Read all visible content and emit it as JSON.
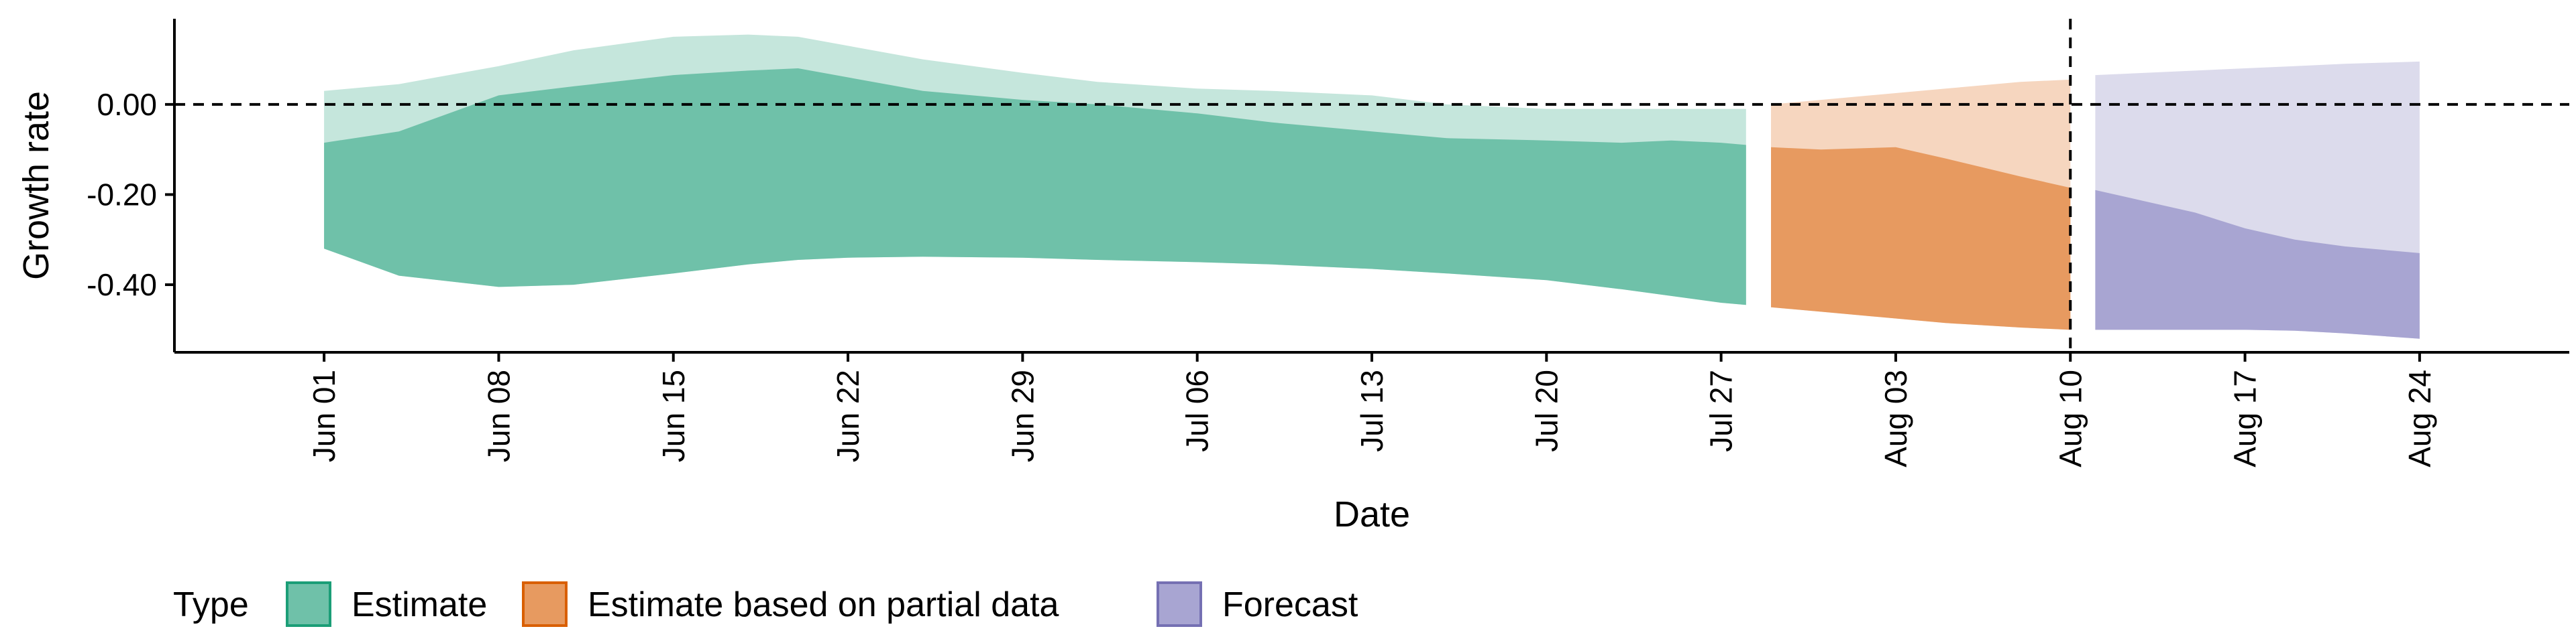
{
  "chart_data": {
    "type": "area",
    "xlabel": "Date",
    "ylabel": "Growth rate",
    "xlim": [
      "2020-05-26",
      "2020-08-30"
    ],
    "ylim": [
      -0.55,
      0.19
    ],
    "y_ticks": [
      0.0,
      -0.2,
      -0.4
    ],
    "y_tick_labels": [
      "0.00",
      "-0.20",
      "-0.40"
    ],
    "x_ticks": [
      "2020-06-01",
      "2020-06-08",
      "2020-06-15",
      "2020-06-22",
      "2020-06-29",
      "2020-07-06",
      "2020-07-13",
      "2020-07-20",
      "2020-07-27",
      "2020-08-03",
      "2020-08-10",
      "2020-08-17",
      "2020-08-24"
    ],
    "x_tick_labels": [
      "Jun 01",
      "Jun 08",
      "Jun 15",
      "Jun 22",
      "Jun 29",
      "Jul 06",
      "Jul 13",
      "Jul 20",
      "Jul 27",
      "Aug 03",
      "Aug 10",
      "Aug 17",
      "Aug 24"
    ],
    "reference_lines": {
      "horizontal_y": 0.0,
      "vertical_x": "2020-08-10",
      "style": "dashed"
    },
    "grid": false,
    "legend": {
      "title": "Type",
      "position": "bottom-left",
      "entries": [
        {
          "label": "Estimate",
          "fill": "#6fc1a9",
          "stroke": "#1b9e77"
        },
        {
          "label": "Estimate based on partial data",
          "fill": "#e79a60",
          "stroke": "#d95f02"
        },
        {
          "label": "Forecast",
          "fill": "#a8a5d2",
          "stroke": "#7570b3"
        }
      ]
    },
    "series": [
      {
        "type_label": "Estimate",
        "outer_color": "#c5e6dc",
        "inner_color": "#6fc1a9",
        "x": [
          "2020-06-01",
          "2020-06-04",
          "2020-06-08",
          "2020-06-11",
          "2020-06-15",
          "2020-06-18",
          "2020-06-20",
          "2020-06-22",
          "2020-06-25",
          "2020-06-29",
          "2020-07-02",
          "2020-07-06",
          "2020-07-09",
          "2020-07-13",
          "2020-07-16",
          "2020-07-20",
          "2020-07-23",
          "2020-07-25",
          "2020-07-27",
          "2020-07-28"
        ],
        "outer_upper": [
          0.03,
          0.045,
          0.085,
          0.12,
          0.15,
          0.155,
          0.15,
          0.13,
          0.1,
          0.07,
          0.05,
          0.035,
          0.03,
          0.02,
          0.0,
          -0.01,
          -0.01,
          -0.01,
          -0.01,
          -0.01
        ],
        "inner_upper": [
          -0.085,
          -0.06,
          0.02,
          0.04,
          0.065,
          0.075,
          0.08,
          0.06,
          0.03,
          0.01,
          0.0,
          -0.02,
          -0.04,
          -0.06,
          -0.075,
          -0.08,
          -0.085,
          -0.08,
          -0.085,
          -0.09
        ],
        "inner_lower": [
          -0.32,
          -0.38,
          -0.405,
          -0.4,
          -0.375,
          -0.355,
          -0.345,
          -0.34,
          -0.338,
          -0.34,
          -0.345,
          -0.35,
          -0.355,
          -0.365,
          -0.375,
          -0.39,
          -0.41,
          -0.425,
          -0.44,
          -0.445
        ],
        "outer_lower": [
          -0.32,
          -0.38,
          -0.405,
          -0.4,
          -0.375,
          -0.355,
          -0.345,
          -0.34,
          -0.338,
          -0.34,
          -0.345,
          -0.35,
          -0.355,
          -0.365,
          -0.375,
          -0.39,
          -0.41,
          -0.425,
          -0.44,
          -0.445
        ]
      },
      {
        "type_label": "Estimate based on partial data",
        "outer_color": "#f6d6bf",
        "inner_color": "#e79a60",
        "x": [
          "2020-07-29",
          "2020-07-31",
          "2020-08-03",
          "2020-08-05",
          "2020-08-08",
          "2020-08-10"
        ],
        "outer_upper": [
          0.0,
          0.01,
          0.025,
          0.035,
          0.05,
          0.055
        ],
        "inner_upper": [
          -0.095,
          -0.1,
          -0.095,
          -0.12,
          -0.16,
          -0.185
        ],
        "inner_lower": [
          -0.45,
          -0.46,
          -0.475,
          -0.485,
          -0.495,
          -0.5
        ],
        "outer_lower": [
          -0.45,
          -0.46,
          -0.475,
          -0.485,
          -0.495,
          -0.5
        ]
      },
      {
        "type_label": "Forecast",
        "outer_color": "#dcdbec",
        "inner_color": "#a8a5d2",
        "x": [
          "2020-08-11",
          "2020-08-13",
          "2020-08-15",
          "2020-08-17",
          "2020-08-19",
          "2020-08-21",
          "2020-08-24"
        ],
        "outer_upper": [
          0.065,
          0.07,
          0.075,
          0.08,
          0.085,
          0.09,
          0.095
        ],
        "inner_upper": [
          -0.19,
          -0.215,
          -0.24,
          -0.275,
          -0.3,
          -0.315,
          -0.33
        ],
        "inner_lower": [
          -0.5,
          -0.5,
          -0.5,
          -0.5,
          -0.502,
          -0.508,
          -0.52
        ],
        "outer_lower": [
          -0.5,
          -0.5,
          -0.5,
          -0.5,
          -0.502,
          -0.508,
          -0.52
        ]
      }
    ]
  }
}
